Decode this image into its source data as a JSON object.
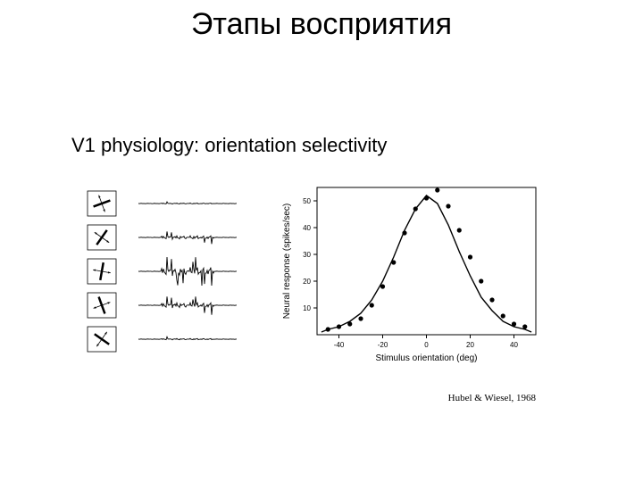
{
  "title": "Этапы восприятия",
  "subtitle": "V1 physiology: orientation selectivity",
  "citation": "Hubel & Wiesel, 1968",
  "orientations": {
    "angles_deg": [
      20,
      55,
      80,
      110,
      145
    ],
    "line_color": "#000000",
    "arrow_color": "#000000",
    "rect_stroke": "#000000"
  },
  "spike_traces": {
    "intensities": [
      0.05,
      0.35,
      0.95,
      0.55,
      0.1
    ],
    "baseline_color": "#000000"
  },
  "tuning_chart": {
    "type": "scatter",
    "x_values": [
      -45,
      -40,
      -35,
      -30,
      -25,
      -20,
      -15,
      -10,
      -5,
      0,
      5,
      10,
      15,
      20,
      25,
      30,
      35,
      40,
      45
    ],
    "y_values": [
      2,
      3,
      4,
      6,
      11,
      18,
      27,
      38,
      47,
      51,
      54,
      48,
      39,
      29,
      20,
      13,
      7,
      4,
      3
    ],
    "curve_x": [
      -48,
      -45,
      -40,
      -35,
      -30,
      -25,
      -20,
      -15,
      -10,
      -5,
      0,
      5,
      10,
      15,
      20,
      25,
      30,
      35,
      40,
      45,
      48
    ],
    "curve_y": [
      1,
      2,
      3,
      5,
      8,
      13,
      20,
      29,
      39,
      47,
      52,
      49,
      41,
      31,
      22,
      14,
      9,
      5,
      3,
      2,
      1
    ],
    "xlabel": "Stimulus orientation (deg)",
    "ylabel": "Neural response (spikes/sec)",
    "xlim": [
      -50,
      50
    ],
    "ylim": [
      0,
      55
    ],
    "xticks": [
      -40,
      -20,
      0,
      20,
      40
    ],
    "yticks": [
      10,
      20,
      30,
      40,
      50
    ],
    "axis_color": "#000000",
    "point_color": "#000000",
    "curve_color": "#000000",
    "label_fontsize": 10,
    "tick_fontsize": 8
  }
}
